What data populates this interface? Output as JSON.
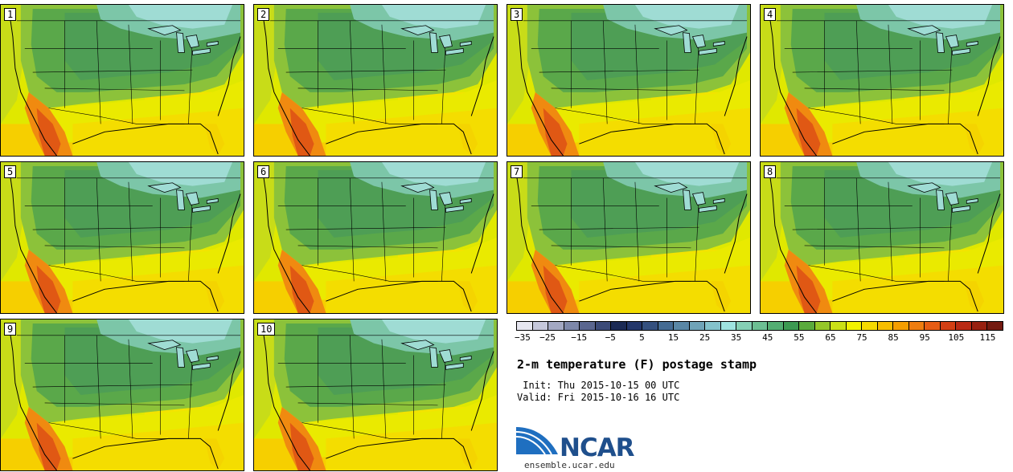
{
  "panels": [
    {
      "label": "1"
    },
    {
      "label": "2"
    },
    {
      "label": "3"
    },
    {
      "label": "4"
    },
    {
      "label": "5"
    },
    {
      "label": "6"
    },
    {
      "label": "7"
    },
    {
      "label": "8"
    },
    {
      "label": "9"
    },
    {
      "label": "10"
    }
  ],
  "colorbar": {
    "colors": [
      "#e6e6f0",
      "#c6c8dc",
      "#a3a8c3",
      "#7e88aa",
      "#5a6690",
      "#3b4a78",
      "#1b2a55",
      "#23366a",
      "#34507f",
      "#456b93",
      "#5a87a6",
      "#6fa3b8",
      "#84c2cc",
      "#9ee3e0",
      "#85d0b5",
      "#6cbf93",
      "#53ad72",
      "#3c9a52",
      "#5aaa3c",
      "#95c729",
      "#cbe016",
      "#f2f200",
      "#f6d900",
      "#f7bd00",
      "#f59e00",
      "#ef7d10",
      "#e65c14",
      "#d43f14",
      "#b92a14",
      "#982010",
      "#741a10"
    ],
    "tick_labels": [
      "−35",
      "−25",
      "−15",
      "−5",
      "5",
      "15",
      "25",
      "35",
      "45",
      "55",
      "65",
      "75",
      "85",
      "95",
      "105",
      "115"
    ]
  },
  "title": "2-m temperature (F) postage stamp",
  "init": " Init: Thu 2015-10-15 00 UTC",
  "valid": "Valid: Fri 2015-10-16 16 UTC",
  "logo": {
    "text": "NCAR",
    "url": "ensemble.ucar.edu"
  }
}
